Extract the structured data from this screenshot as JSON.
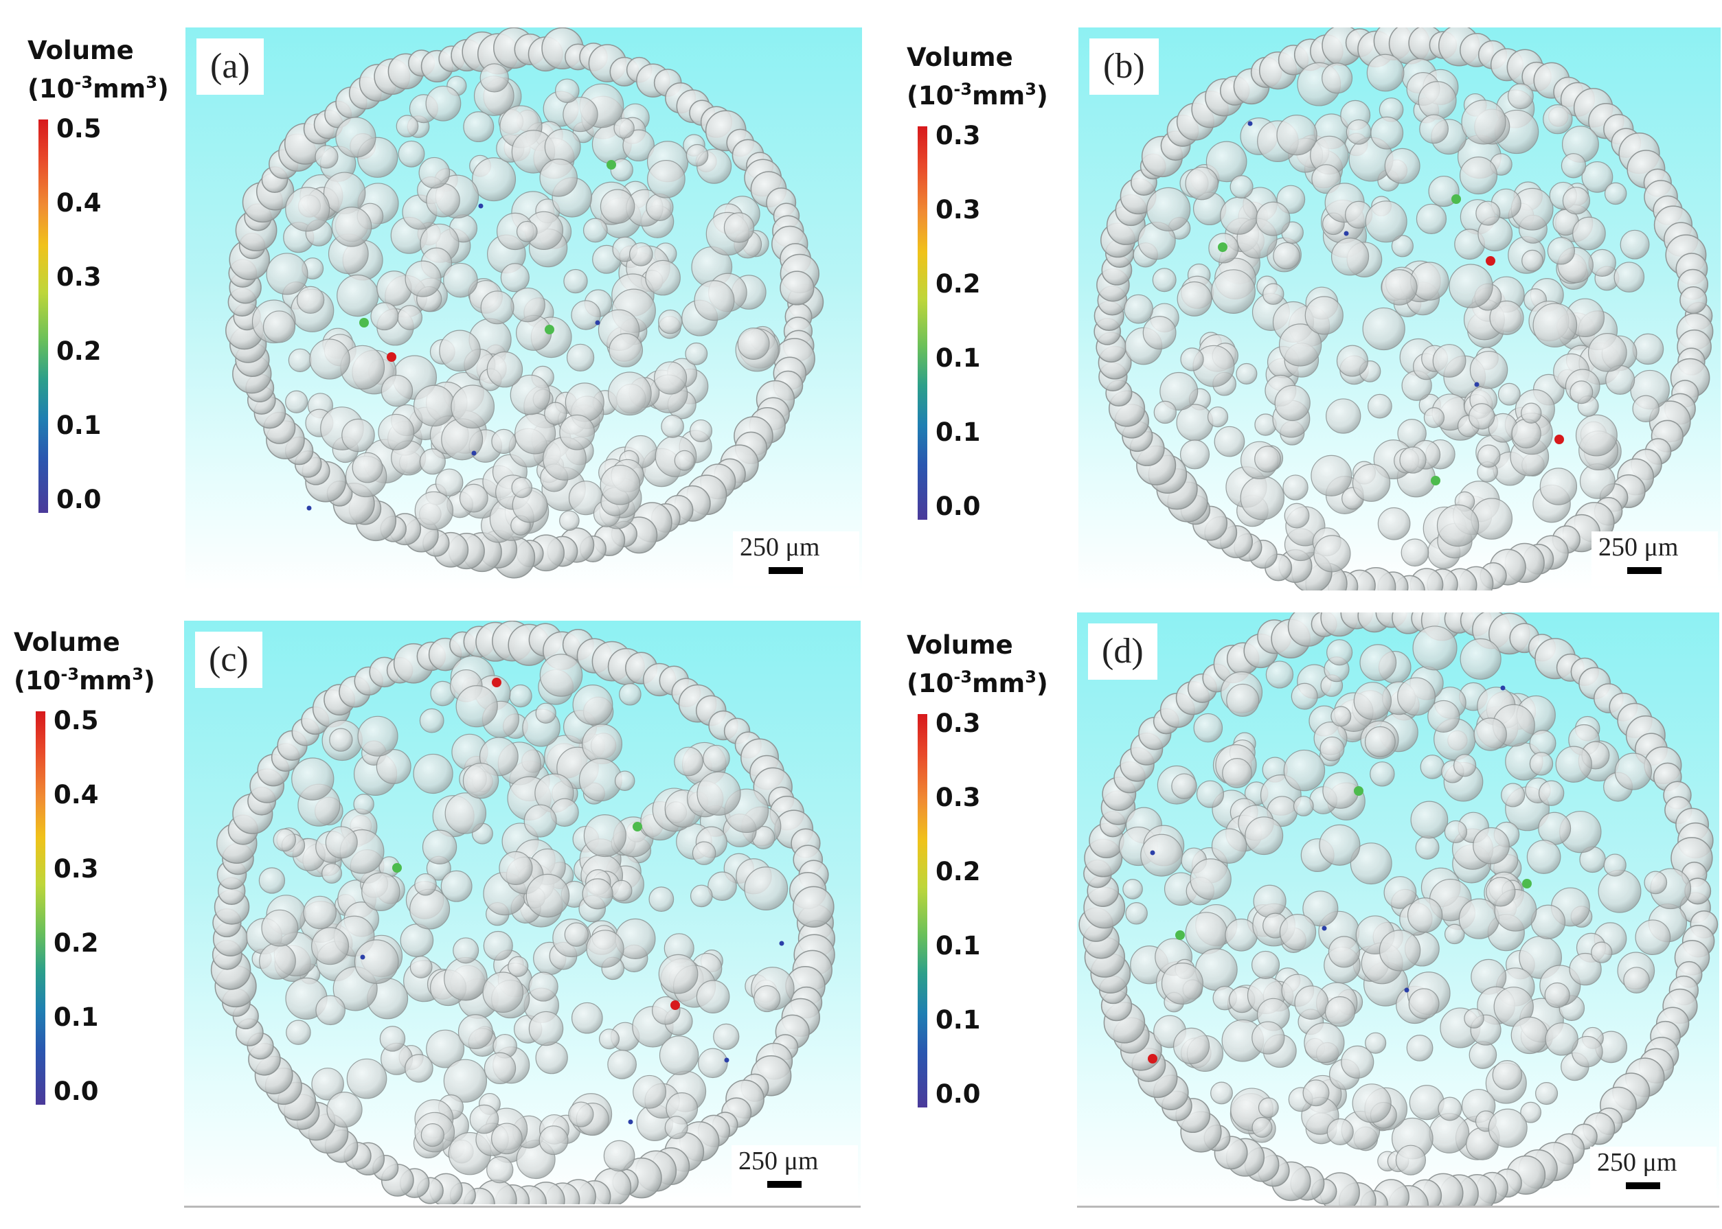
{
  "panels": [
    {
      "label": "(a)",
      "legend": {
        "title": "Volume",
        "unit_base": "(10",
        "unit_exp": "-3",
        "unit_rest": "mm",
        "unit_exp2": "3",
        "unit_close": ")",
        "ticks": [
          "0.5",
          "0.4",
          "0.3",
          "0.2",
          "0.1",
          "0.0"
        ]
      },
      "scale_bar": "250 μm"
    },
    {
      "label": "(b)",
      "legend": {
        "title": "Volume",
        "unit_base": "(10",
        "unit_exp": "-3",
        "unit_rest": "mm",
        "unit_exp2": "3",
        "unit_close": ")",
        "ticks": [
          "0.3",
          "0.3",
          "0.2",
          "0.1",
          "0.1",
          "0.0"
        ]
      },
      "scale_bar": "250 μm"
    },
    {
      "label": "(c)",
      "legend": {
        "title": "Volume",
        "unit_base": "(10",
        "unit_exp": "-3",
        "unit_rest": "mm",
        "unit_exp2": "3",
        "unit_close": ")",
        "ticks": [
          "0.5",
          "0.4",
          "0.3",
          "0.2",
          "0.1",
          "0.0"
        ]
      },
      "scale_bar": "250 μm"
    },
    {
      "label": "(d)",
      "legend": {
        "title": "Volume",
        "unit_base": "(10",
        "unit_exp": "-3",
        "unit_rest": "mm",
        "unit_exp2": "3",
        "unit_close": ")",
        "ticks": [
          "0.3",
          "0.3",
          "0.2",
          "0.1",
          "0.1",
          "0.0"
        ]
      },
      "scale_bar": "250 μm"
    }
  ],
  "colors": {
    "sphere_fill": "#d6dada",
    "sphere_stroke": "#8f9595",
    "pore_high": "#d7191c",
    "pore_mid": "#4dbb4d",
    "pore_low": "#2b3fa8"
  }
}
